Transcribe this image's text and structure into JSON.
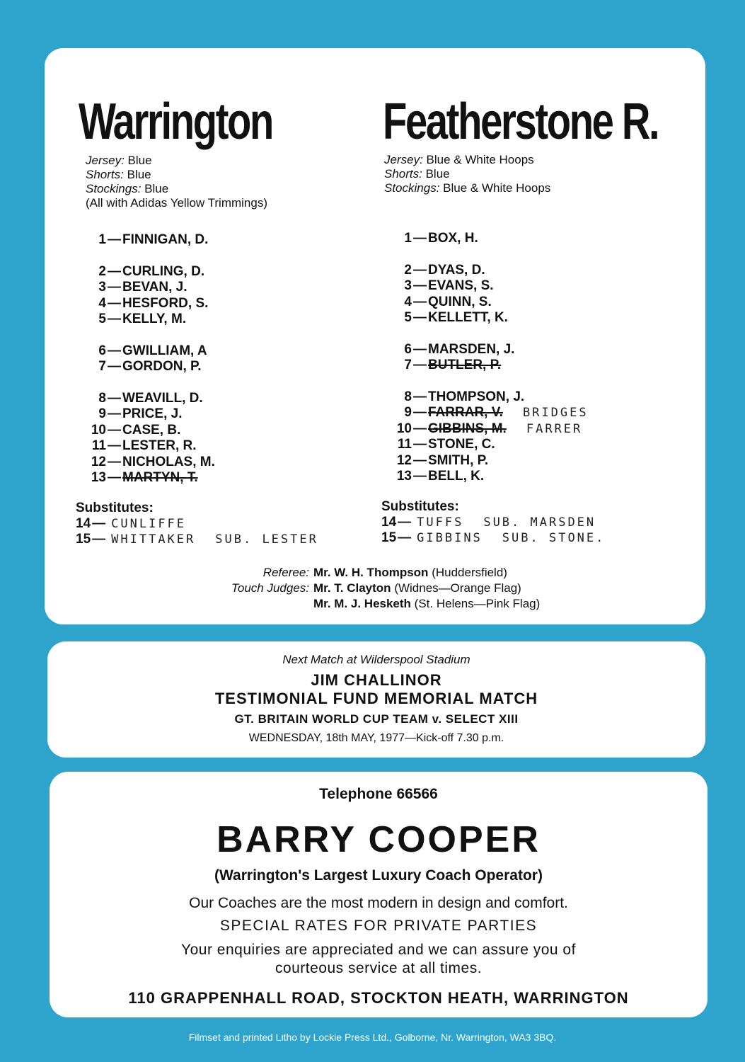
{
  "home": {
    "name": "Warrington",
    "kit": [
      {
        "label": "Jersey:",
        "value": "Blue"
      },
      {
        "label": "Shorts:",
        "value": "Blue"
      },
      {
        "label": "Stockings:",
        "value": "Blue"
      }
    ],
    "kit_note": "(All with Adidas Yellow Trimmings)",
    "groups": [
      [
        {
          "num": "1",
          "name": "FINNIGAN, D."
        }
      ],
      [
        {
          "num": "2",
          "name": "CURLING, D."
        },
        {
          "num": "3",
          "name": "BEVAN, J."
        },
        {
          "num": "4",
          "name": "HESFORD, S."
        },
        {
          "num": "5",
          "name": "KELLY, M."
        }
      ],
      [
        {
          "num": "6",
          "name": "GWILLIAM, A"
        },
        {
          "num": "7",
          "name": "GORDON, P."
        }
      ],
      [
        {
          "num": "8",
          "name": "WEAVILL, D."
        },
        {
          "num": "9",
          "name": "PRICE, J."
        },
        {
          "num": "10",
          "name": "CASE, B."
        },
        {
          "num": "11",
          "name": "LESTER, R."
        },
        {
          "num": "12",
          "name": "NICHOLAS, M."
        },
        {
          "num": "13",
          "name": "MARTYN, T.",
          "struck": true
        }
      ]
    ],
    "subs_label": "Substitutes:",
    "subs": [
      {
        "num": "14",
        "name": "CUNLIFFE"
      },
      {
        "num": "15",
        "name": "WHITTAKER",
        "note": "SUB. LESTER"
      }
    ]
  },
  "away": {
    "name": "Featherstone R.",
    "kit": [
      {
        "label": "Jersey:",
        "value": "Blue & White Hoops"
      },
      {
        "label": "Shorts:",
        "value": "Blue"
      },
      {
        "label": "Stockings:",
        "value": "Blue & White Hoops"
      }
    ],
    "groups": [
      [
        {
          "num": "1",
          "name": "BOX, H."
        }
      ],
      [
        {
          "num": "2",
          "name": "DYAS, D."
        },
        {
          "num": "3",
          "name": "EVANS, S."
        },
        {
          "num": "4",
          "name": "QUINN, S."
        },
        {
          "num": "5",
          "name": "KELLETT, K."
        }
      ],
      [
        {
          "num": "6",
          "name": "MARSDEN, J."
        },
        {
          "num": "7",
          "name": "BUTLER, P.",
          "struck": true
        }
      ],
      [
        {
          "num": "8",
          "name": "THOMPSON, J."
        },
        {
          "num": "9",
          "name": "FARRAR, V.",
          "struck": true,
          "note": "BRIDGES"
        },
        {
          "num": "10",
          "name": "GIBBINS, M.",
          "struck": true,
          "note": "FARRER"
        },
        {
          "num": "11",
          "name": "STONE, C."
        },
        {
          "num": "12",
          "name": "SMITH, P."
        },
        {
          "num": "13",
          "name": "BELL, K."
        }
      ]
    ],
    "subs_label": "Substitutes:",
    "subs": [
      {
        "num": "14",
        "name": "TUFFS",
        "note": "SUB. MARSDEN"
      },
      {
        "num": "15",
        "name": "GIBBINS",
        "note": "SUB. STONE."
      }
    ]
  },
  "officials": {
    "referee_label": "Referee:",
    "referee_name": "Mr. W. H. Thompson",
    "referee_from": "(Huddersfield)",
    "touch_label": "Touch Judges:",
    "touch1_name": "Mr. T. Clayton",
    "touch1_from": "(Widnes—Orange Flag)",
    "touch2_name": "Mr. M. J. Hesketh",
    "touch2_from": "(St. Helens—Pink Flag)"
  },
  "next_match": {
    "intro": "Next Match at Wilderspool Stadium",
    "line1": "JIM CHALLINOR",
    "line2": "TESTIMONIAL FUND MEMORIAL MATCH",
    "line3": "GT. BRITAIN WORLD CUP TEAM v. SELECT XIII",
    "line4": "WEDNESDAY, 18th MAY, 1977—Kick-off 7.30 p.m."
  },
  "advert": {
    "telephone": "Telephone 66566",
    "name": "BARRY COOPER",
    "tagline": "(Warrington's Largest Luxury Coach Operator)",
    "line1": "Our Coaches are the most modern in design and comfort.",
    "line2": "SPECIAL RATES FOR PRIVATE PARTIES",
    "line3": "Your enquiries are appreciated and we can assure you of",
    "line4": "courteous service at all times.",
    "address": "110 GRAPPENHALL ROAD, STOCKTON HEATH, WARRINGTON"
  },
  "footer": "Filmset and printed Litho by Lockie Press Ltd., Golborne, Nr. Warrington, WA3 3BQ.",
  "colors": {
    "background": "#2ea3cb",
    "card": "#ffffff"
  }
}
